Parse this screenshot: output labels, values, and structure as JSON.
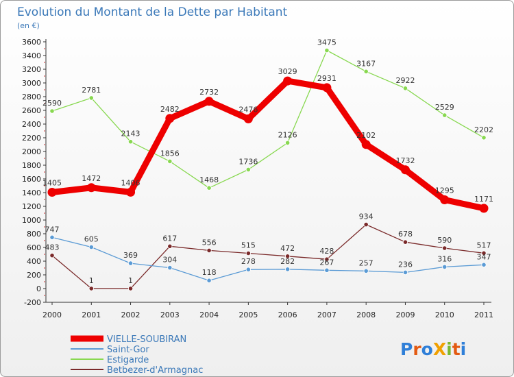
{
  "chart_data": {
    "type": "line",
    "title": "Evolution du Montant de la Dette par Habitant",
    "unit_label": "(en €)",
    "xlabel": "",
    "ylabel": "",
    "categories": [
      "2000",
      "2001",
      "2002",
      "2003",
      "2004",
      "2005",
      "2006",
      "2007",
      "2008",
      "2009",
      "2010",
      "2011"
    ],
    "ylim": [
      -200,
      3600
    ],
    "yticks": [
      -200,
      0,
      200,
      400,
      600,
      800,
      1000,
      1200,
      1400,
      1600,
      1800,
      2000,
      2200,
      2400,
      2600,
      2800,
      3000,
      3200,
      3400,
      3600
    ],
    "grid": false,
    "legend_position": "bottom-left",
    "series": [
      {
        "name": "VIELLE-SOUBIRAN",
        "color": "#ee0000",
        "values": [
          1405,
          1472,
          1406,
          2482,
          2732,
          2476,
          3029,
          2931,
          2102,
          1732,
          1295,
          1171
        ]
      },
      {
        "name": "Saint-Gor",
        "color": "#5b9bd5",
        "values": [
          747,
          605,
          369,
          304,
          118,
          278,
          282,
          267,
          257,
          236,
          316,
          347
        ]
      },
      {
        "name": "Estigarde",
        "color": "#88d850",
        "values": [
          2590,
          2781,
          2143,
          1856,
          1468,
          1736,
          2126,
          3475,
          3167,
          2922,
          2529,
          2202
        ]
      },
      {
        "name": "Betbezer-d'Armagnac",
        "color": "#7a2a2a",
        "values": [
          483,
          1,
          1,
          617,
          556,
          515,
          472,
          428,
          934,
          678,
          590,
          517
        ]
      }
    ]
  },
  "brand": {
    "text": "ProXiti"
  }
}
